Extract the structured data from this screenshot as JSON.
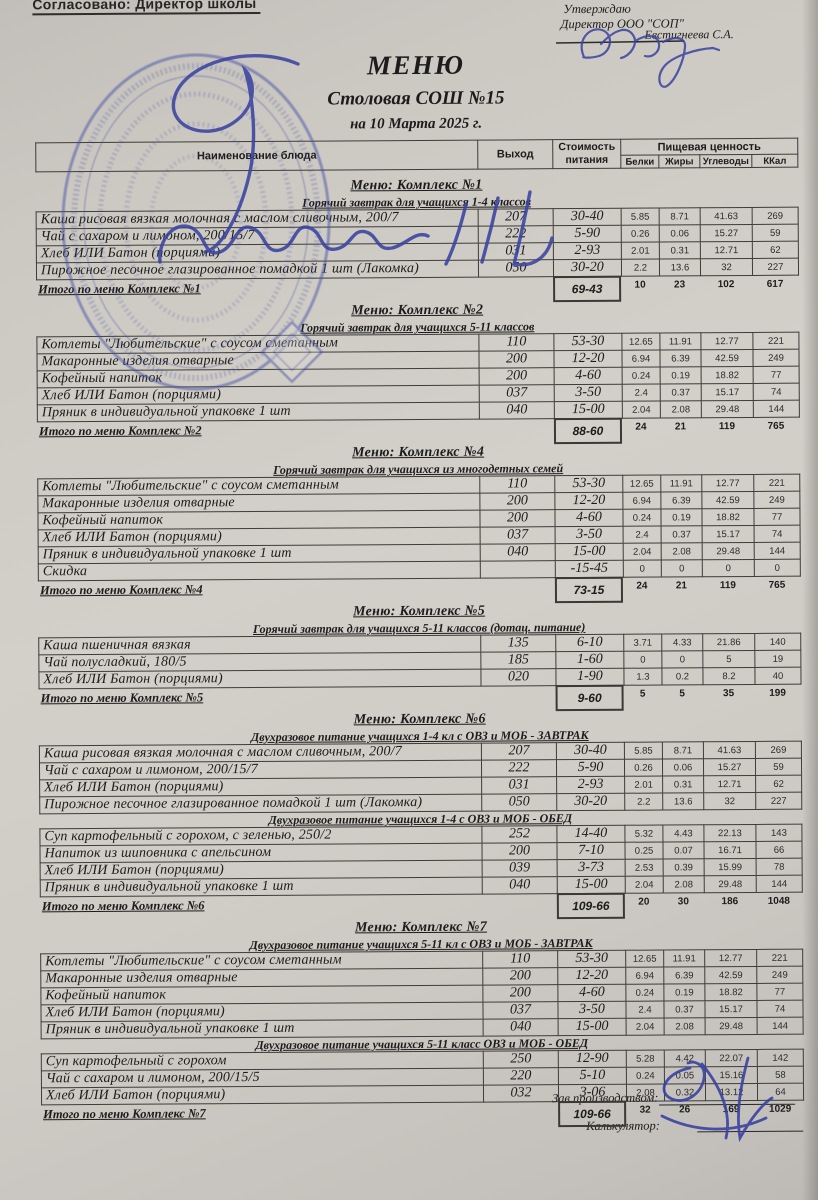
{
  "document": {
    "agreed_label": "Согласовано: Директор школы",
    "approval": {
      "line1": "Утверждаю",
      "line2": "Директор ООО \"СОП\"",
      "signer": "Евстигнеева С.А."
    },
    "title": "МЕНЮ",
    "subtitle": "Столовая СОШ №15",
    "date_line": "на 10 Марта 2025 г.",
    "footer": {
      "production_manager_label": "Зав.производством:",
      "calculator_label": "Калькулятор:"
    },
    "graphics": {
      "stamp": "round-blue-school-stamp",
      "signatures": [
        "school-director-signature",
        "sop-director-signature",
        "production-manager-signature"
      ]
    }
  },
  "table_header": {
    "name": "Наименование блюда",
    "yield": "Выход",
    "cost_line1": "Стоимость",
    "cost_line2": "питания",
    "nutrition": "Пищевая ценность",
    "protein": "Белки",
    "fat": "Жиры",
    "carbs": "Углеводы",
    "kcal": "ККал"
  },
  "sections": [
    {
      "title": "Меню: Комплекс №1",
      "groups": [
        {
          "subtitle": "Горячий завтрак для учащихся 1-4 классов",
          "rows": [
            {
              "name": "Каша рисовая вязкая молочная с маслом сливочным, 200/7",
              "yield": "207",
              "cost": "30-40",
              "protein": "5.85",
              "fat": "8.71",
              "carbs": "41.63",
              "kcal": "269"
            },
            {
              "name": "Чай с сахаром и лимоном, 200/15/7",
              "yield": "222",
              "cost": "5-90",
              "protein": "0.26",
              "fat": "0.06",
              "carbs": "15.27",
              "kcal": "59"
            },
            {
              "name": "Хлеб ИЛИ Батон (порциями)",
              "yield": "031",
              "cost": "2-93",
              "protein": "2.01",
              "fat": "0.31",
              "carbs": "12.71",
              "kcal": "62"
            },
            {
              "name": "Пирожное песочное глазированное помадкой 1 шт (Лакомка)",
              "yield": "050",
              "cost": "30-20",
              "protein": "2.2",
              "fat": "13.6",
              "carbs": "32",
              "kcal": "227"
            }
          ]
        }
      ],
      "total": {
        "label": "Итого по меню Комплекс №1",
        "cost": "69-43",
        "protein": "10",
        "fat": "23",
        "carbs": "102",
        "kcal": "617"
      }
    },
    {
      "title": "Меню: Комплекс №2",
      "groups": [
        {
          "subtitle": "Горячий завтрак для учащихся 5-11 классов",
          "rows": [
            {
              "name": "Котлеты  \"Любительские\" с соусом сметанным",
              "yield": "110",
              "cost": "53-30",
              "protein": "12.65",
              "fat": "11.91",
              "carbs": "12.77",
              "kcal": "221"
            },
            {
              "name": "Макаронные изделия отварные",
              "yield": "200",
              "cost": "12-20",
              "protein": "6.94",
              "fat": "6.39",
              "carbs": "42.59",
              "kcal": "249"
            },
            {
              "name": "Кофейный напиток",
              "yield": "200",
              "cost": "4-60",
              "protein": "0.24",
              "fat": "0.19",
              "carbs": "18.82",
              "kcal": "77"
            },
            {
              "name": "Хлеб ИЛИ Батон (порциями)",
              "yield": "037",
              "cost": "3-50",
              "protein": "2.4",
              "fat": "0.37",
              "carbs": "15.17",
              "kcal": "74"
            },
            {
              "name": "Пряник в индивидуальной упаковке 1 шт",
              "yield": "040",
              "cost": "15-00",
              "protein": "2.04",
              "fat": "2.08",
              "carbs": "29.48",
              "kcal": "144"
            }
          ]
        }
      ],
      "total": {
        "label": "Итого по меню Комплекс №2",
        "cost": "88-60",
        "protein": "24",
        "fat": "21",
        "carbs": "119",
        "kcal": "765"
      }
    },
    {
      "title": "Меню: Комплекс №4",
      "groups": [
        {
          "subtitle": "Горячий завтрак для учащихся из многодетных семей",
          "rows": [
            {
              "name": "Котлеты  \"Любительские\" с соусом сметанным",
              "yield": "110",
              "cost": "53-30",
              "protein": "12.65",
              "fat": "11.91",
              "carbs": "12.77",
              "kcal": "221"
            },
            {
              "name": "Макаронные изделия отварные",
              "yield": "200",
              "cost": "12-20",
              "protein": "6.94",
              "fat": "6.39",
              "carbs": "42.59",
              "kcal": "249"
            },
            {
              "name": "Кофейный напиток",
              "yield": "200",
              "cost": "4-60",
              "protein": "0.24",
              "fat": "0.19",
              "carbs": "18.82",
              "kcal": "77"
            },
            {
              "name": "Хлеб ИЛИ Батон (порциями)",
              "yield": "037",
              "cost": "3-50",
              "protein": "2.4",
              "fat": "0.37",
              "carbs": "15.17",
              "kcal": "74"
            },
            {
              "name": "Пряник в индивидуальной упаковке 1 шт",
              "yield": "040",
              "cost": "15-00",
              "protein": "2.04",
              "fat": "2.08",
              "carbs": "29.48",
              "kcal": "144"
            },
            {
              "name": "Скидка",
              "yield": "",
              "cost": "-15-45",
              "protein": "0",
              "fat": "0",
              "carbs": "0",
              "kcal": "0"
            }
          ]
        }
      ],
      "total": {
        "label": "Итого по меню Комплекс №4",
        "cost": "73-15",
        "protein": "24",
        "fat": "21",
        "carbs": "119",
        "kcal": "765"
      }
    },
    {
      "title": "Меню: Комплекс №5",
      "groups": [
        {
          "subtitle": "Горячий завтрак для учащихся 5-11 классов (дотац. питание)",
          "rows": [
            {
              "name": "Каша пшеничная вязкая",
              "yield": "135",
              "cost": "6-10",
              "protein": "3.71",
              "fat": "4.33",
              "carbs": "21.86",
              "kcal": "140"
            },
            {
              "name": "Чай полусладкий, 180/5",
              "yield": "185",
              "cost": "1-60",
              "protein": "0",
              "fat": "0",
              "carbs": "5",
              "kcal": "19"
            },
            {
              "name": "Хлеб ИЛИ Батон (порциями)",
              "yield": "020",
              "cost": "1-90",
              "protein": "1.3",
              "fat": "0.2",
              "carbs": "8.2",
              "kcal": "40"
            }
          ]
        }
      ],
      "total": {
        "label": "Итого по меню Комплекс №5",
        "cost": "9-60",
        "protein": "5",
        "fat": "5",
        "carbs": "35",
        "kcal": "199"
      }
    },
    {
      "title": "Меню: Комплекс №6",
      "groups": [
        {
          "subtitle": "Двухразовое питание учащихся 1-4 кл с ОВЗ и МОБ - ЗАВТРАК",
          "rows": [
            {
              "name": "Каша рисовая вязкая молочная с маслом сливочным, 200/7",
              "yield": "207",
              "cost": "30-40",
              "protein": "5.85",
              "fat": "8.71",
              "carbs": "41.63",
              "kcal": "269"
            },
            {
              "name": "Чай с сахаром и лимоном, 200/15/7",
              "yield": "222",
              "cost": "5-90",
              "protein": "0.26",
              "fat": "0.06",
              "carbs": "15.27",
              "kcal": "59"
            },
            {
              "name": "Хлеб ИЛИ Батон (порциями)",
              "yield": "031",
              "cost": "2-93",
              "protein": "2.01",
              "fat": "0.31",
              "carbs": "12.71",
              "kcal": "62"
            },
            {
              "name": "Пирожное песочное глазированное помадкой 1 шт (Лакомка)",
              "yield": "050",
              "cost": "30-20",
              "protein": "2.2",
              "fat": "13.6",
              "carbs": "32",
              "kcal": "227"
            }
          ]
        },
        {
          "subtitle": "Двухразовое питание учащихся 1-4 с ОВЗ и МОБ - ОБЕД",
          "rows": [
            {
              "name": "Суп картофельный с горохом, с зеленью, 250/2",
              "yield": "252",
              "cost": "14-40",
              "protein": "5.32",
              "fat": "4.43",
              "carbs": "22.13",
              "kcal": "143"
            },
            {
              "name": "Напиток из шиповника с апельсином",
              "yield": "200",
              "cost": "7-10",
              "protein": "0.25",
              "fat": "0.07",
              "carbs": "16.71",
              "kcal": "66"
            },
            {
              "name": "Хлеб ИЛИ Батон (порциями)",
              "yield": "039",
              "cost": "3-73",
              "protein": "2.53",
              "fat": "0.39",
              "carbs": "15.99",
              "kcal": "78"
            },
            {
              "name": "Пряник в индивидуальной упаковке 1 шт",
              "yield": "040",
              "cost": "15-00",
              "protein": "2.04",
              "fat": "2.08",
              "carbs": "29.48",
              "kcal": "144"
            }
          ]
        }
      ],
      "total": {
        "label": "Итого по меню Комплекс №6",
        "cost": "109-66",
        "protein": "20",
        "fat": "30",
        "carbs": "186",
        "kcal": "1048"
      }
    },
    {
      "title": "Меню: Комплекс №7",
      "groups": [
        {
          "subtitle": "Двухразовое питание учащихся 5-11 кл с  ОВЗ и МОБ - ЗАВТРАК",
          "rows": [
            {
              "name": "Котлеты  \"Любительские\" с соусом сметанным",
              "yield": "110",
              "cost": "53-30",
              "protein": "12.65",
              "fat": "11.91",
              "carbs": "12.77",
              "kcal": "221"
            },
            {
              "name": "Макаронные изделия отварные",
              "yield": "200",
              "cost": "12-20",
              "protein": "6.94",
              "fat": "6.39",
              "carbs": "42.59",
              "kcal": "249"
            },
            {
              "name": "Кофейный напиток",
              "yield": "200",
              "cost": "4-60",
              "protein": "0.24",
              "fat": "0.19",
              "carbs": "18.82",
              "kcal": "77"
            },
            {
              "name": "Хлеб ИЛИ Батон (порциями)",
              "yield": "037",
              "cost": "3-50",
              "protein": "2.4",
              "fat": "0.37",
              "carbs": "15.17",
              "kcal": "74"
            },
            {
              "name": "Пряник в индивидуальной упаковке 1 шт",
              "yield": "040",
              "cost": "15-00",
              "protein": "2.04",
              "fat": "2.08",
              "carbs": "29.48",
              "kcal": "144"
            }
          ]
        },
        {
          "subtitle": "Двухразовое питание учащихся 5-11 класс ОВЗ и МОБ - ОБЕД",
          "rows": [
            {
              "name": "Суп картофельный с горохом",
              "yield": "250",
              "cost": "12-90",
              "protein": "5.28",
              "fat": "4.42",
              "carbs": "22.07",
              "kcal": "142"
            },
            {
              "name": "Чай с сахаром и лимоном, 200/15/5",
              "yield": "220",
              "cost": "5-10",
              "protein": "0.24",
              "fat": "0.05",
              "carbs": "15.16",
              "kcal": "58"
            },
            {
              "name": "Хлеб ИЛИ Батон (порциями)",
              "yield": "032",
              "cost": "3-06",
              "protein": "2.08",
              "fat": "0.32",
              "carbs": "13.12",
              "kcal": "64"
            }
          ]
        }
      ],
      "total": {
        "label": "Итого по меню Комплекс №7",
        "cost": "109-66",
        "protein": "32",
        "fat": "26",
        "carbs": "169",
        "kcal": "1029"
      }
    }
  ]
}
